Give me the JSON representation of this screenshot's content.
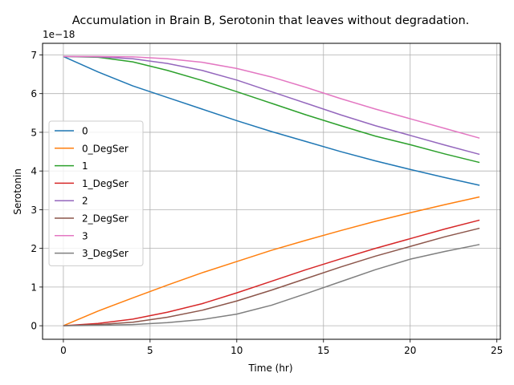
{
  "chart_data": {
    "type": "line",
    "title": "Accumulation in Brain B, Serotonin that leaves without degradation.",
    "xlabel": "Time (hr)",
    "ylabel": "Serotonin",
    "y_offset_label": "1e−18",
    "xlim": [
      -1.2,
      25.2
    ],
    "ylim": [
      -0.35,
      7.3
    ],
    "xticks": [
      0,
      5,
      10,
      15,
      20,
      25
    ],
    "yticks": [
      0,
      1,
      2,
      3,
      4,
      5,
      6,
      7
    ],
    "grid": true,
    "legend_position": "center-left",
    "x": [
      0,
      2,
      4,
      6,
      8,
      10,
      12,
      14,
      16,
      18,
      20,
      22,
      24
    ],
    "series": [
      {
        "name": "0",
        "color": "#1f77b4",
        "values": [
          6.96,
          6.56,
          6.2,
          5.9,
          5.6,
          5.3,
          5.02,
          4.76,
          4.5,
          4.26,
          4.04,
          3.83,
          3.63
        ]
      },
      {
        "name": "0_DegSer",
        "color": "#ff7f0e",
        "values": [
          0.0,
          0.38,
          0.72,
          1.05,
          1.37,
          1.66,
          1.95,
          2.21,
          2.46,
          2.7,
          2.92,
          3.13,
          3.33
        ]
      },
      {
        "name": "1",
        "color": "#2ca02c",
        "values": [
          6.96,
          6.94,
          6.82,
          6.6,
          6.34,
          6.05,
          5.75,
          5.45,
          5.17,
          4.9,
          4.68,
          4.44,
          4.22
        ]
      },
      {
        "name": "1_DegSer",
        "color": "#d62728",
        "values": [
          0.0,
          0.06,
          0.17,
          0.35,
          0.57,
          0.85,
          1.15,
          1.45,
          1.73,
          2.0,
          2.25,
          2.5,
          2.73
        ]
      },
      {
        "name": "2",
        "color": "#9467bd",
        "values": [
          6.96,
          6.95,
          6.9,
          6.78,
          6.6,
          6.35,
          6.05,
          5.75,
          5.45,
          5.17,
          4.92,
          4.67,
          4.43
        ]
      },
      {
        "name": "2_DegSer",
        "color": "#8c564b",
        "values": [
          0.0,
          0.03,
          0.09,
          0.22,
          0.4,
          0.64,
          0.92,
          1.22,
          1.52,
          1.8,
          2.05,
          2.3,
          2.52
        ]
      },
      {
        "name": "3",
        "color": "#e377c2",
        "values": [
          6.96,
          6.96,
          6.95,
          6.9,
          6.81,
          6.65,
          6.43,
          6.16,
          5.87,
          5.6,
          5.35,
          5.1,
          4.85
        ]
      },
      {
        "name": "3_DegSer",
        "color": "#7f7f7f",
        "values": [
          0.0,
          0.01,
          0.03,
          0.08,
          0.16,
          0.3,
          0.53,
          0.83,
          1.14,
          1.45,
          1.72,
          1.92,
          2.1
        ]
      }
    ]
  }
}
